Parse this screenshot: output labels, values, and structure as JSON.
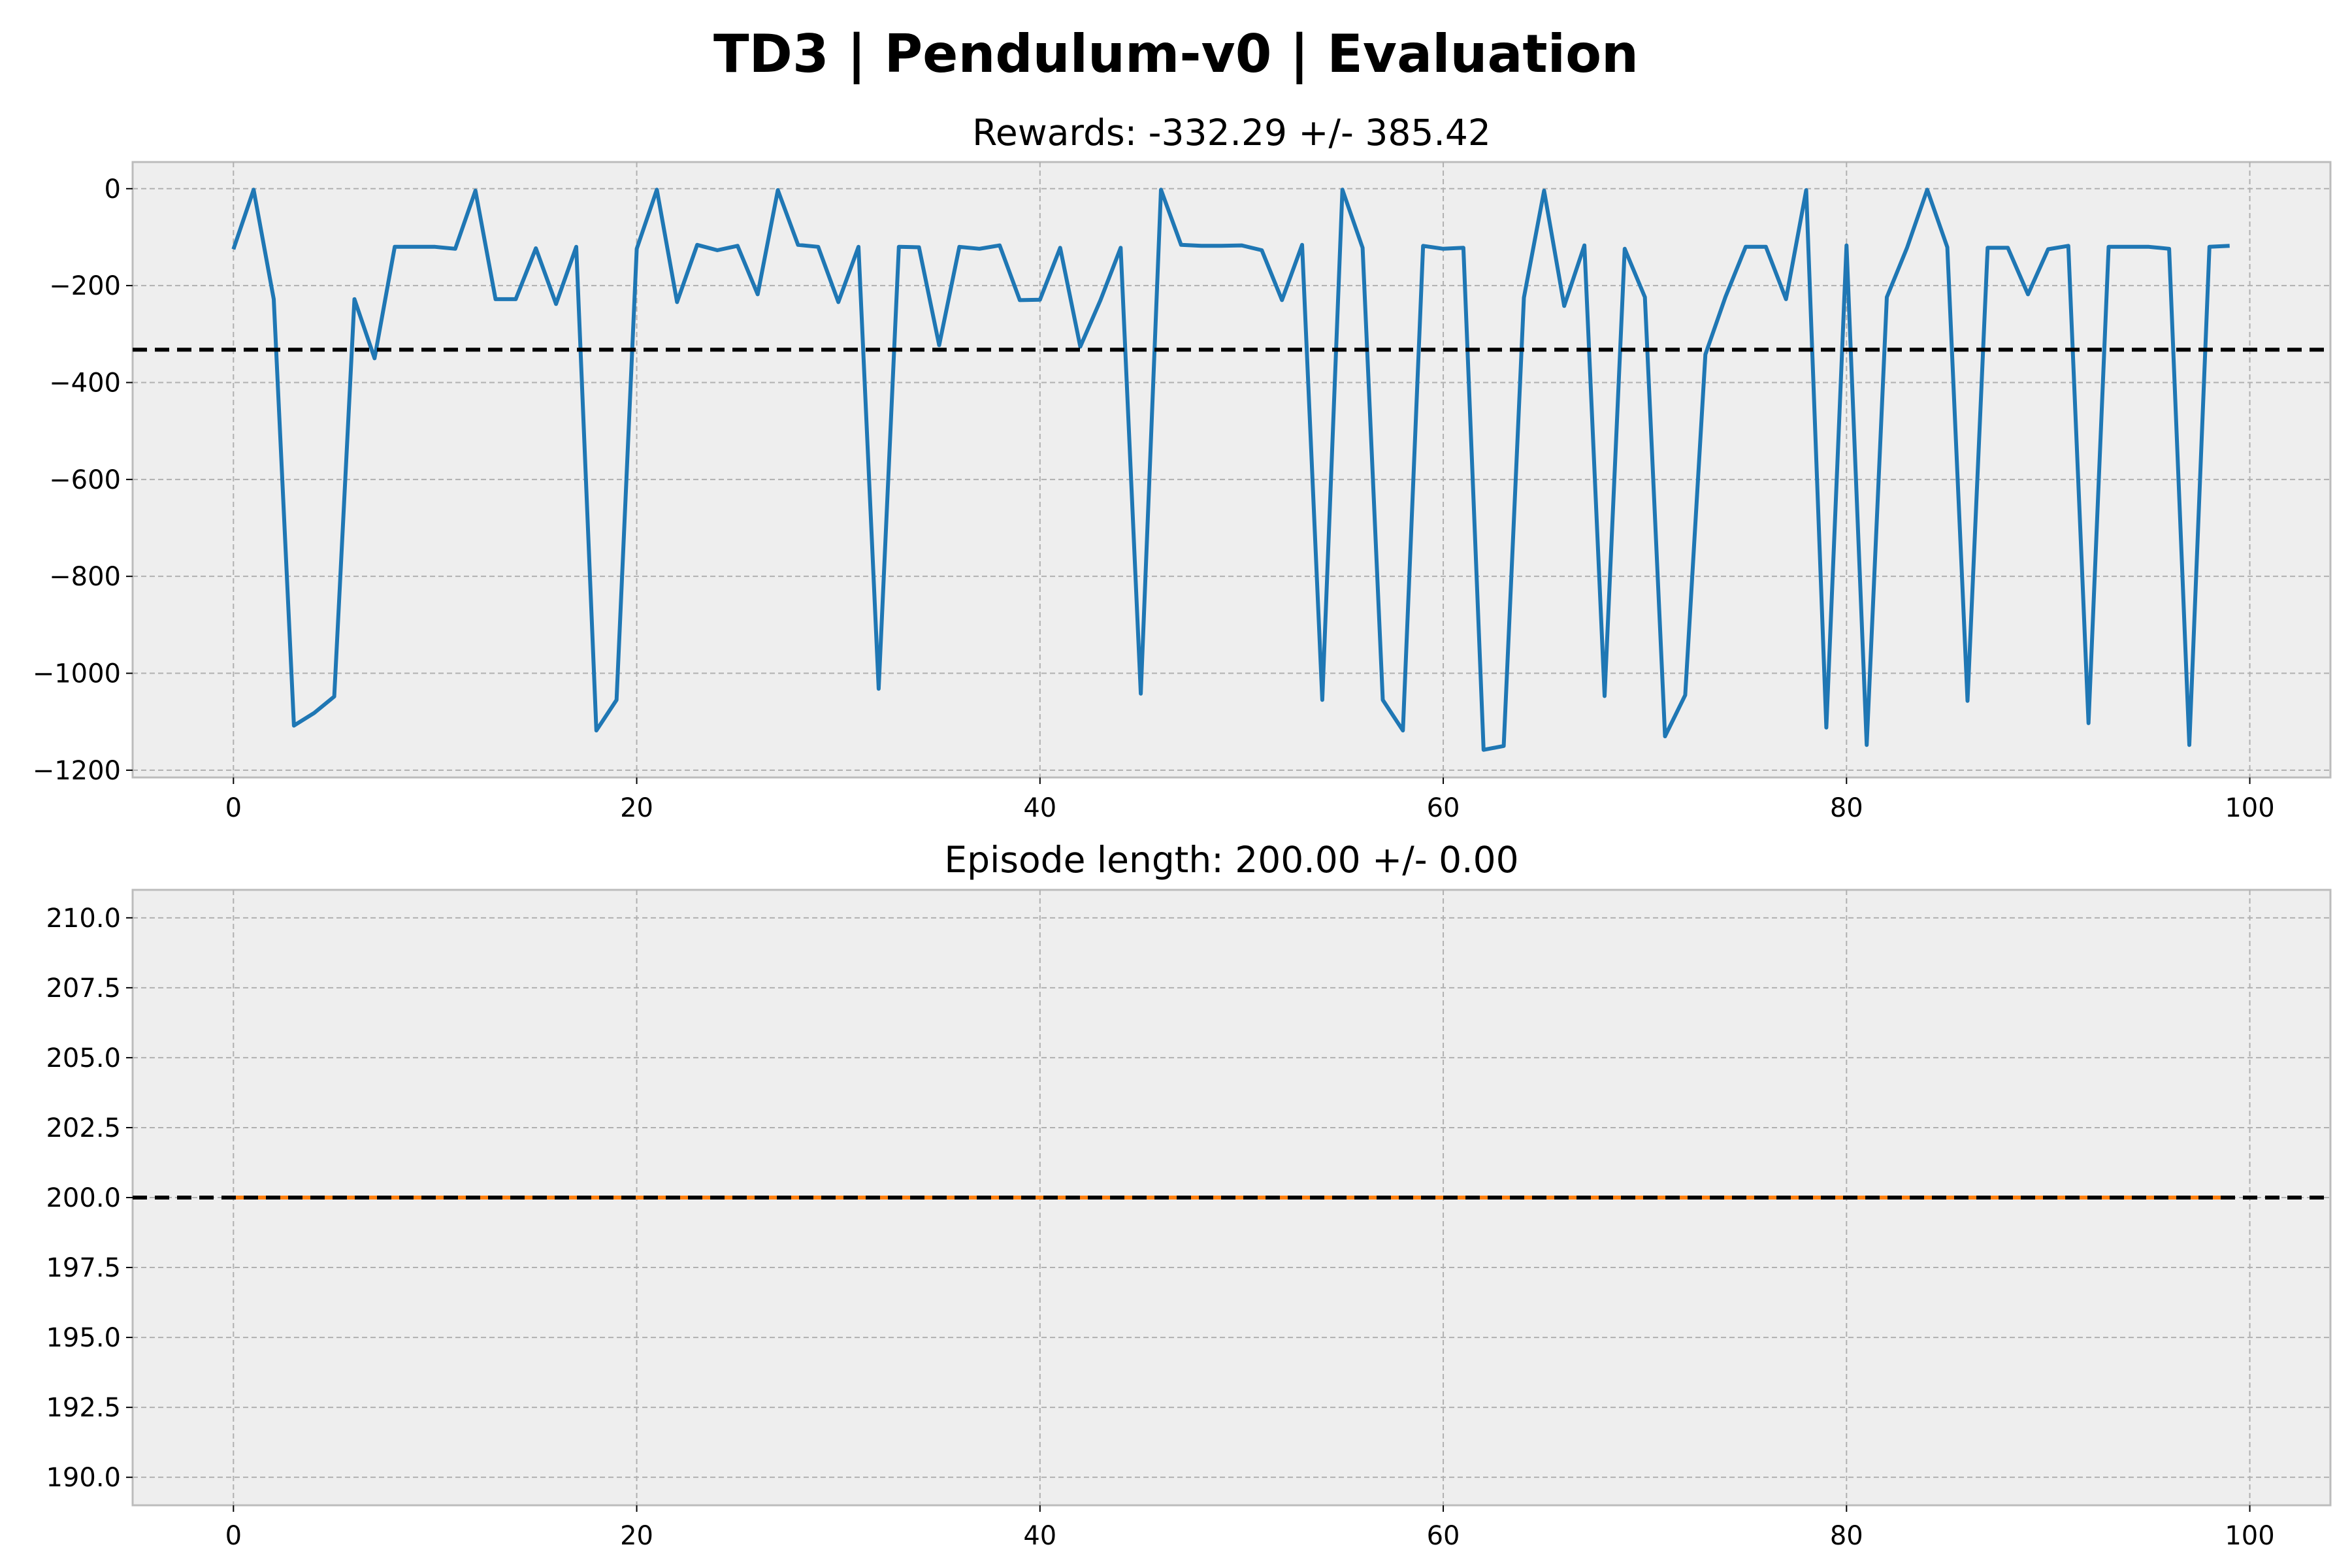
{
  "chart_data": {
    "title": "TD3 | Pendulum-v0 | Evaluation",
    "subplots": [
      {
        "type": "line",
        "title": "Rewards: -332.29 +/- 385.42",
        "xlim": [
          -5,
          104
        ],
        "ylim": [
          -1215,
          55
        ],
        "xticks": [
          0,
          20,
          40,
          60,
          80,
          100
        ],
        "xtick_labels": [
          "0",
          "20",
          "40",
          "60",
          "80",
          "100"
        ],
        "yticks": [
          0,
          -200,
          -400,
          -600,
          -800,
          -1000,
          -1200
        ],
        "ytick_labels": [
          "0",
          "−200",
          "−400",
          "−600",
          "−800",
          "−1000",
          "−1200"
        ],
        "grid": true,
        "series_color": "#1f77b4",
        "mean_line": -332.29,
        "mean_line_color": "#000000",
        "x": [
          0,
          1,
          2,
          3,
          4,
          5,
          6,
          7,
          8,
          9,
          10,
          11,
          12,
          13,
          14,
          15,
          16,
          17,
          18,
          19,
          20,
          21,
          22,
          23,
          24,
          25,
          26,
          27,
          28,
          29,
          30,
          31,
          32,
          33,
          34,
          35,
          36,
          37,
          38,
          39,
          40,
          41,
          42,
          43,
          44,
          45,
          46,
          47,
          48,
          49,
          50,
          51,
          52,
          53,
          54,
          55,
          56,
          57,
          58,
          59,
          60,
          61,
          62,
          63,
          64,
          65,
          66,
          67,
          68,
          69,
          70,
          71,
          72,
          73,
          74,
          75,
          76,
          77,
          78,
          79,
          80,
          81,
          82,
          83,
          84,
          85,
          86,
          87,
          88,
          89,
          90,
          91,
          92,
          93,
          94,
          95,
          96,
          97,
          98,
          99
        ],
        "y": [
          -125,
          -2,
          -228,
          -1108,
          -1082,
          -1048,
          -228,
          -350,
          -120,
          -120,
          -120,
          -124,
          -4,
          -228,
          -228,
          -123,
          -238,
          -120,
          -1118,
          -1055,
          -124,
          -2,
          -234,
          -116,
          -127,
          -118,
          -218,
          -3,
          -116,
          -120,
          -234,
          -120,
          -1032,
          -120,
          -121,
          -323,
          -120,
          -124,
          -117,
          -230,
          -229,
          -122,
          -326,
          -230,
          -122,
          -1042,
          -2,
          -116,
          -118,
          -118,
          -117,
          -127,
          -230,
          -116,
          -1055,
          -2,
          -122,
          -1055,
          -1118,
          -118,
          -124,
          -122,
          -1158,
          -1150,
          -225,
          -4,
          -242,
          -117,
          -1047,
          -124,
          -224,
          -1130,
          -1045,
          -342,
          -223,
          -120,
          -120,
          -228,
          -3,
          -1112,
          -117,
          -1148,
          -224,
          -122,
          -2,
          -121,
          -1057,
          -122,
          -122,
          -218,
          -125,
          -118,
          -1103,
          -120,
          -120,
          -120,
          -124,
          -1148,
          -120,
          -118
        ]
      },
      {
        "type": "line",
        "title": "Episode length: 200.00 +/- 0.00",
        "xlim": [
          -5,
          104
        ],
        "ylim": [
          189,
          211
        ],
        "xticks": [
          0,
          20,
          40,
          60,
          80,
          100
        ],
        "xtick_labels": [
          "0",
          "20",
          "40",
          "60",
          "80",
          "100"
        ],
        "yticks": [
          190.0,
          192.5,
          195.0,
          197.5,
          200.0,
          202.5,
          205.0,
          207.5,
          210.0
        ],
        "ytick_labels": [
          "190.0",
          "192.5",
          "195.0",
          "197.5",
          "200.0",
          "202.5",
          "205.0",
          "207.5",
          "210.0"
        ],
        "grid": true,
        "series_color": "#ff7f0e",
        "mean_line": 200.0,
        "mean_line_color": "#000000",
        "x_range": [
          0,
          99
        ],
        "y_constant": 200
      }
    ]
  }
}
